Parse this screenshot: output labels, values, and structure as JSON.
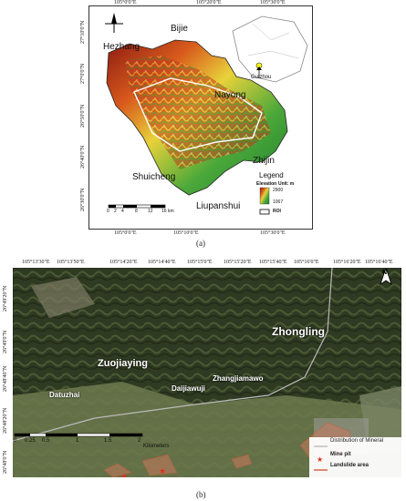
{
  "map_a": {
    "lon_ticks": [
      "105°0'0\"E",
      "105°20'0\"E",
      "105°30'0\"E"
    ],
    "lon_ticks_bottom": [
      "105°0'0\"E",
      "105°10'0\"E",
      "105°30'0\"E"
    ],
    "lat_ticks": [
      "27°10'0\"N",
      "27°0'0\"N",
      "26°50'0\"N",
      "26°40'0\"N",
      "26°30'0\"N"
    ],
    "places": {
      "bijie": "Bijie",
      "hezhang": "Hezhang",
      "nayong": "Nayong",
      "zhijin": "Zhijin",
      "shuicheng": "Shuicheng",
      "liupanshui": "Liupanshui",
      "guizhou": "Guizhou"
    },
    "scale_ticks": [
      "0",
      "2",
      "4",
      "8",
      "12",
      "16 km"
    ],
    "legend": {
      "title": "Legend",
      "elevation_label": "Elevation",
      "unit": "Unit: m",
      "max": "2900",
      "min": "1067",
      "roi": "ROI"
    },
    "north": "N",
    "caption": "(a)"
  },
  "map_b": {
    "lon_ticks": [
      "105°13'30\"E",
      "105°13'50\"E",
      "105°14'20\"E",
      "105°14'40\"E",
      "105°15'0\"E",
      "105°15'20\"E",
      "105°15'40\"E",
      "105°16'0\"E",
      "105°16'20\"E",
      "105°16'40\"E"
    ],
    "lat_ticks": [
      "26°49'20\"N",
      "26°49'0\"N",
      "26°48'40\"N",
      "26°48'20\"N",
      "26°48'0\"N"
    ],
    "places": {
      "zhongling": "Zhongling",
      "zuojiaying": "Zuojiaying",
      "daijiawuji": "Daijiawuji",
      "zhangjiamawo": "Zhangjiamawo",
      "datuzhai": "Datuzhai"
    },
    "scale_ticks": [
      "0",
      "0.25",
      "0.5",
      "1",
      "1.5",
      "2"
    ],
    "scale_unit": "Kilometers",
    "legend": {
      "mineral": "Distribution of Mineral",
      "mine_pit": "Mine pit",
      "landslide": "Landslide area"
    },
    "north": "N",
    "caption": "(b)"
  }
}
